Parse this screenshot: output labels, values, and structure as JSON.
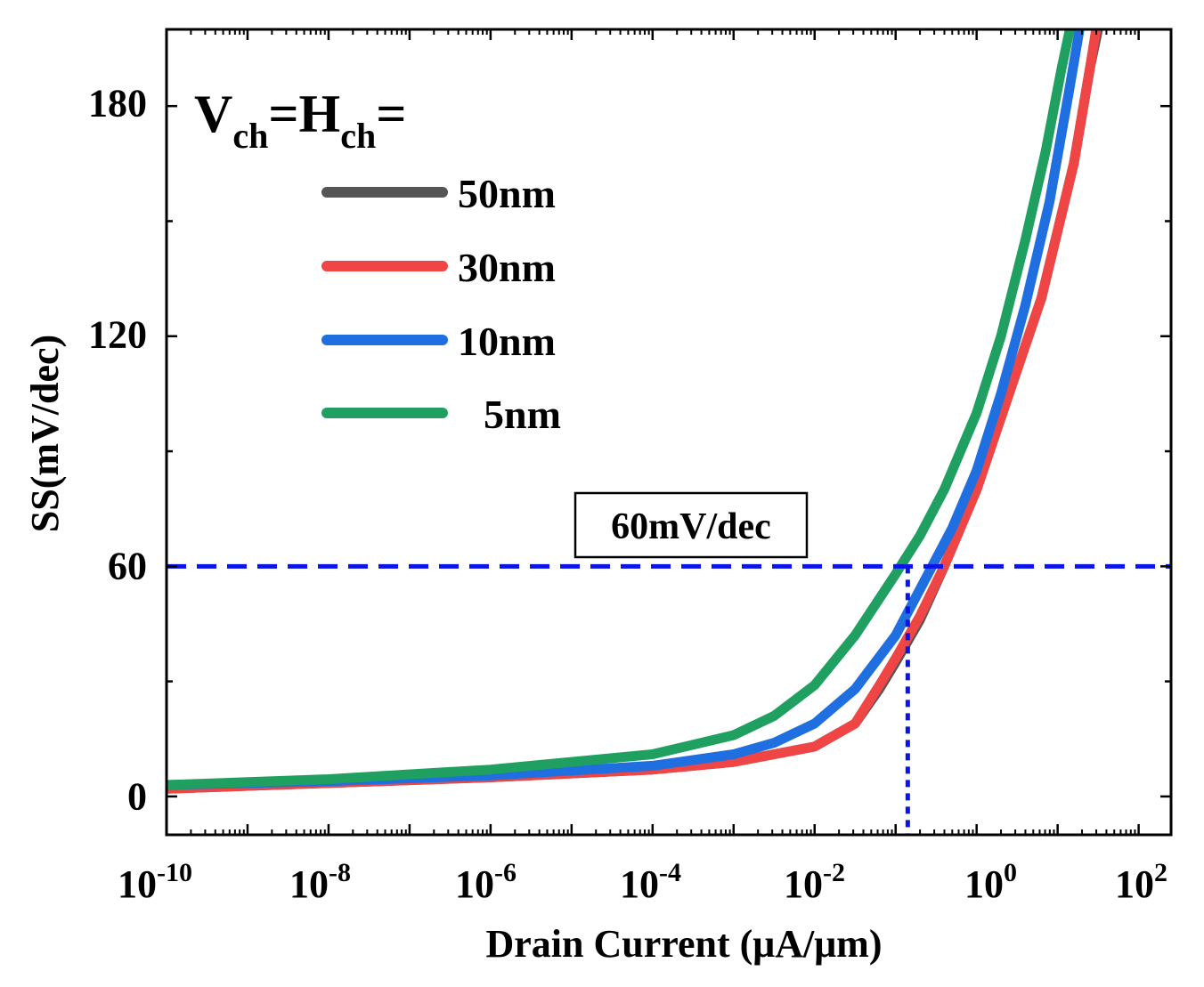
{
  "chart_data": {
    "type": "line",
    "title": "",
    "xlabel": "Drain Current (μA/μm)",
    "ylabel": "SS(mV/dec)",
    "xscale": "log",
    "xlim_exp": [
      -10,
      2.4
    ],
    "ylim": [
      -10,
      200
    ],
    "x_tick_exponents": [
      "-10",
      "-8",
      "-6",
      "-4",
      "-2",
      "0",
      "2"
    ],
    "x_tick_base": "10",
    "y_ticks": [
      0,
      60,
      120,
      180
    ],
    "y_tick_labels": [
      "0",
      "60",
      "120",
      "180"
    ],
    "legend_title": {
      "main": "V",
      "sub1": "ch",
      "eq": "=H",
      "sub2": "ch",
      "end": "="
    },
    "legend_position": "top-left",
    "series": [
      {
        "name": "50nm",
        "color": "#555555",
        "x_exp": [
          -10,
          -8,
          -6,
          -4,
          -3,
          -2.5,
          -2,
          -1.5,
          -1.2,
          -1,
          -0.7,
          -0.4,
          0,
          0.4,
          0.8,
          1.2,
          1.4,
          1.6
        ],
        "y": [
          2,
          3.5,
          5,
          7,
          9,
          11,
          13,
          19,
          28,
          35,
          46,
          60,
          80,
          105,
          130,
          165,
          190,
          210
        ]
      },
      {
        "name": "30nm",
        "color": "#ef4545",
        "x_exp": [
          -10,
          -8,
          -6,
          -4,
          -3,
          -2.5,
          -2,
          -1.5,
          -1.2,
          -1,
          -0.7,
          -0.4,
          0,
          0.4,
          0.8,
          1.2,
          1.4,
          1.55
        ],
        "y": [
          2,
          3.5,
          5,
          7,
          9,
          11,
          13,
          19,
          29,
          36,
          47,
          60,
          80,
          105,
          130,
          165,
          190,
          210
        ]
      },
      {
        "name": "10nm",
        "color": "#1f6fe0",
        "x_exp": [
          -10,
          -8,
          -6,
          -4,
          -3,
          -2.5,
          -2,
          -1.5,
          -1,
          -0.6,
          -0.3,
          0,
          0.3,
          0.6,
          0.9,
          1.15,
          1.35
        ],
        "y": [
          3,
          4,
          5.5,
          8,
          11,
          14,
          19,
          28,
          42,
          58,
          70,
          85,
          105,
          128,
          155,
          185,
          210
        ]
      },
      {
        "name": "5nm",
        "color": "#1fa060",
        "x_exp": [
          -10,
          -8,
          -6,
          -4,
          -3,
          -2.5,
          -2,
          -1.5,
          -1,
          -0.7,
          -0.4,
          0,
          0.3,
          0.6,
          0.85,
          1.05,
          1.25
        ],
        "y": [
          3,
          4.5,
          7,
          11,
          16,
          21,
          29,
          42,
          58,
          68,
          80,
          100,
          120,
          145,
          168,
          190,
          210
        ]
      }
    ],
    "reference_line": {
      "label": "60mV/dec",
      "y": 60,
      "x_exp": -0.85,
      "color": "#0a14e6"
    }
  }
}
